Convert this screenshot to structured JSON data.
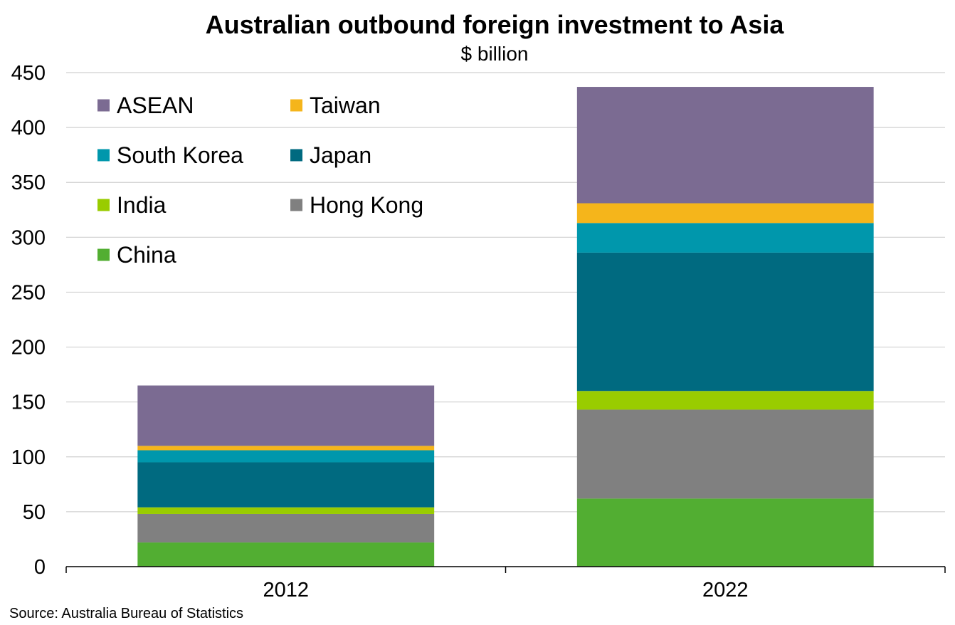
{
  "chart_data": {
    "type": "bar",
    "stacked": true,
    "title": "Australian outbound foreign investment to Asia",
    "subtitle": "$ billion",
    "xlabel": "",
    "ylabel": "",
    "categories": [
      "2012",
      "2022"
    ],
    "ylim": [
      0,
      450
    ],
    "yticks": [
      0,
      50,
      100,
      150,
      200,
      250,
      300,
      350,
      400,
      450
    ],
    "grid": true,
    "legend_position": "top-left",
    "series": [
      {
        "name": "China",
        "color": "#52AE32",
        "values": [
          22,
          62
        ]
      },
      {
        "name": "Hong Kong",
        "color": "#808080",
        "values": [
          26,
          81
        ]
      },
      {
        "name": "India",
        "color": "#99CC00",
        "values": [
          6,
          17
        ]
      },
      {
        "name": "Japan",
        "color": "#006A80",
        "values": [
          41,
          126
        ]
      },
      {
        "name": "South Korea",
        "color": "#0097AC",
        "values": [
          11,
          27
        ]
      },
      {
        "name": "Taiwan",
        "color": "#F5B51B",
        "values": [
          4,
          18
        ]
      },
      {
        "name": "ASEAN",
        "color": "#7B6B92",
        "values": [
          55,
          106
        ]
      }
    ],
    "legend_order": [
      "ASEAN",
      "Taiwan",
      "South Korea",
      "Japan",
      "India",
      "Hong Kong",
      "China"
    ]
  },
  "source": "Source: Australia Bureau of Statistics"
}
